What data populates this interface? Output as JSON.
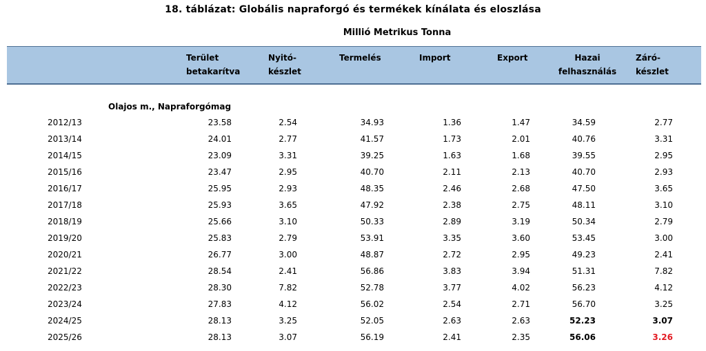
{
  "title": "18. táblázat: Globális napraforgó és termékek kínálata és eloszlása",
  "subtitle": "Millió Metrikus Tonna",
  "headers": [
    {
      "line1": "Terület",
      "line2": "betakarítva"
    },
    {
      "line1": "Nyitó-",
      "line2": "készlet"
    },
    {
      "line1": "Termelés",
      "line2": ""
    },
    {
      "line1": "Import",
      "line2": ""
    },
    {
      "line1": "Export",
      "line2": ""
    },
    {
      "line1": "Hazai",
      "line2": "felhasználás"
    },
    {
      "line1": "Záró-",
      "line2": "készlet"
    }
  ],
  "section_label": "Olajos m., Napraforgómag",
  "rows": [
    {
      "year": "2012/13",
      "values": [
        "23.58",
        "2.54",
        "34.93",
        "1.36",
        "1.47",
        "34.59",
        "2.77"
      ]
    },
    {
      "year": "2013/14",
      "values": [
        "24.01",
        "2.77",
        "41.57",
        "1.73",
        "2.01",
        "40.76",
        "3.31"
      ]
    },
    {
      "year": "2014/15",
      "values": [
        "23.09",
        "3.31",
        "39.25",
        "1.63",
        "1.68",
        "39.55",
        "2.95"
      ]
    },
    {
      "year": "2015/16",
      "values": [
        "23.47",
        "2.95",
        "40.70",
        "2.11",
        "2.13",
        "40.70",
        "2.93"
      ]
    },
    {
      "year": "2016/17",
      "values": [
        "25.95",
        "2.93",
        "48.35",
        "2.46",
        "2.68",
        "47.50",
        "3.65"
      ]
    },
    {
      "year": "2017/18",
      "values": [
        "25.93",
        "3.65",
        "47.92",
        "2.38",
        "2.75",
        "48.11",
        "3.10"
      ]
    },
    {
      "year": "2018/19",
      "values": [
        "25.66",
        "3.10",
        "50.33",
        "2.89",
        "3.19",
        "50.34",
        "2.79"
      ]
    },
    {
      "year": "2019/20",
      "values": [
        "25.83",
        "2.79",
        "53.91",
        "3.35",
        "3.60",
        "53.45",
        "3.00"
      ]
    },
    {
      "year": "2020/21",
      "values": [
        "26.77",
        "3.00",
        "48.87",
        "2.72",
        "2.95",
        "49.23",
        "2.41"
      ]
    },
    {
      "year": "2021/22",
      "values": [
        "28.54",
        "2.41",
        "56.86",
        "3.83",
        "3.94",
        "51.31",
        "7.82"
      ]
    },
    {
      "year": "2022/23",
      "values": [
        "28.30",
        "7.82",
        "52.78",
        "3.77",
        "4.02",
        "56.23",
        "4.12"
      ]
    },
    {
      "year": "2023/24",
      "values": [
        "27.83",
        "4.12",
        "56.02",
        "2.54",
        "2.71",
        "56.70",
        "3.25"
      ]
    },
    {
      "year": "2024/25",
      "values": [
        "28.13",
        "3.25",
        "52.05",
        "2.63",
        "2.63",
        "52.23",
        "3.07"
      ]
    },
    {
      "year": "2025/26",
      "values": [
        "28.13",
        "3.07",
        "56.19",
        "2.41",
        "2.35",
        "56.06",
        "3.26"
      ]
    }
  ],
  "colors": {
    "header_bg": "#a9c6e2",
    "header_border": "#4d6f93",
    "highlight_red": "#e31b23"
  }
}
